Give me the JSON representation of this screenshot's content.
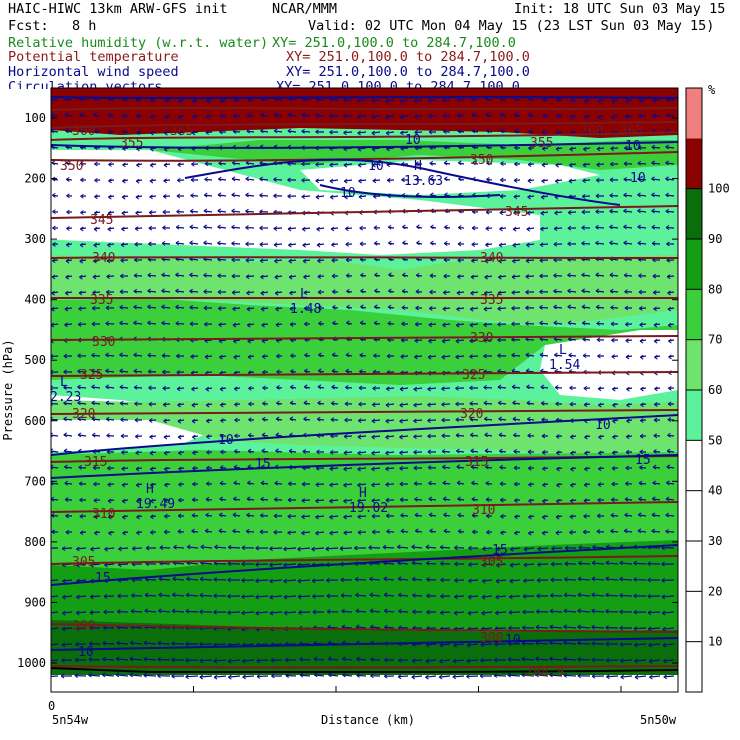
{
  "header": {
    "model": "HAIC-HIWC 13km ARW-GFS init",
    "org": "NCAR/MMM",
    "init": "Init: 18 UTC Sun 03 May 15",
    "fcst_label": "Fcst:",
    "fcst_value": "8 h",
    "valid": "Valid: 02 UTC Mon 04 May 15 (23 LST Sun 03 May 15)",
    "fields": [
      {
        "name": "Relative humidity (w.r.t. water)",
        "xy": "XY= 251.0,100.0 to 284.7,100.0",
        "color": "#1a8a1a"
      },
      {
        "name": "Potential temperature",
        "xy": "XY= 251.0,100.0 to 284.7,100.0",
        "color": "#8b1a1a"
      },
      {
        "name": "Horizontal wind speed",
        "xy": "XY= 251.0,100.0 to 284.7,100.0",
        "color": "#0a0a8c"
      },
      {
        "name": "Circulation vectors",
        "xy": "XY= 251.0,100.0 to 284.7,100.0",
        "color": "#0a0a8c"
      }
    ]
  },
  "chart_data": {
    "type": "heatmap",
    "xlabel": "Distance (km)",
    "ylabel": "Pressure (hPa)",
    "x_start_label": "0",
    "x_left_label": "5n54w",
    "x_right_label": "5n50w",
    "y_ticks": [
      100,
      200,
      300,
      400,
      500,
      600,
      700,
      800,
      900,
      1000
    ],
    "colorbar": {
      "unit": "%",
      "ticks": [
        10,
        20,
        30,
        40,
        50,
        60,
        70,
        80,
        90,
        100
      ],
      "bands": [
        {
          "from": 50,
          "to": 60,
          "color": "#5cf29c"
        },
        {
          "from": 60,
          "to": 70,
          "color": "#6ee46e"
        },
        {
          "from": 70,
          "to": 80,
          "color": "#3ccf3c"
        },
        {
          "from": 80,
          "to": 90,
          "color": "#149e14"
        },
        {
          "from": 90,
          "to": 100,
          "color": "#0a6e0a"
        },
        {
          "from": 100,
          "to": 110,
          "color": "#8b0000"
        },
        {
          "from": 110,
          "to": 120,
          "color": "#f08080"
        }
      ]
    },
    "theta_labels": [
      "365",
      "360",
      "355",
      "350",
      "345",
      "340",
      "335",
      "330",
      "325",
      "320",
      "315",
      "310",
      "305",
      "300",
      "298.9"
    ],
    "wind_labels": [
      "10",
      "15"
    ],
    "extrema": [
      {
        "kind": "H",
        "value": "13.63"
      },
      {
        "kind": "L",
        "value": "1.48"
      },
      {
        "kind": "L",
        "value": "1.54"
      },
      {
        "kind": "L",
        "value": "2.23"
      },
      {
        "kind": "H",
        "value": "19.49"
      },
      {
        "kind": "H",
        "value": "19.02"
      }
    ]
  }
}
